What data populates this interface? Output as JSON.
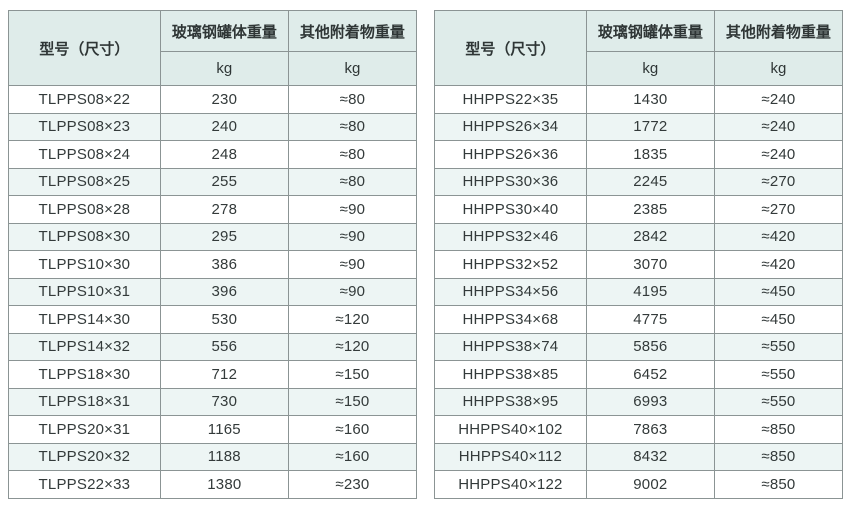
{
  "colors": {
    "header_bg": "#dfecea",
    "row_alt_bg": "#edf5f4",
    "row_bg": "#ffffff",
    "border": "#8b9494",
    "outer_border": "#5f6a6a",
    "text": "#333a3a"
  },
  "tables": [
    {
      "headers": {
        "model": "型号（尺寸）",
        "tank_weight": "玻璃钢罐体重量",
        "attachments_weight": "其他附着物重量",
        "unit": "kg"
      },
      "rows": [
        [
          "TLPPS08×22",
          "230",
          "≈80"
        ],
        [
          "TLPPS08×23",
          "240",
          "≈80"
        ],
        [
          "TLPPS08×24",
          "248",
          "≈80"
        ],
        [
          "TLPPS08×25",
          "255",
          "≈80"
        ],
        [
          "TLPPS08×28",
          "278",
          "≈90"
        ],
        [
          "TLPPS08×30",
          "295",
          "≈90"
        ],
        [
          "TLPPS10×30",
          "386",
          "≈90"
        ],
        [
          "TLPPS10×31",
          "396",
          "≈90"
        ],
        [
          "TLPPS14×30",
          "530",
          "≈120"
        ],
        [
          "TLPPS14×32",
          "556",
          "≈120"
        ],
        [
          "TLPPS18×30",
          "712",
          "≈150"
        ],
        [
          "TLPPS18×31",
          "730",
          "≈150"
        ],
        [
          "TLPPS20×31",
          "1165",
          "≈160"
        ],
        [
          "TLPPS20×32",
          "1188",
          "≈160"
        ],
        [
          "TLPPS22×33",
          "1380",
          "≈230"
        ]
      ]
    },
    {
      "headers": {
        "model": "型号（尺寸）",
        "tank_weight": "玻璃钢罐体重量",
        "attachments_weight": "其他附着物重量",
        "unit": "kg"
      },
      "rows": [
        [
          "HHPPS22×35",
          "1430",
          "≈240"
        ],
        [
          "HHPPS26×34",
          "1772",
          "≈240"
        ],
        [
          "HHPPS26×36",
          "1835",
          "≈240"
        ],
        [
          "HHPPS30×36",
          "2245",
          "≈270"
        ],
        [
          "HHPPS30×40",
          "2385",
          "≈270"
        ],
        [
          "HHPPS32×46",
          "2842",
          "≈420"
        ],
        [
          "HHPPS32×52",
          "3070",
          "≈420"
        ],
        [
          "HHPPS34×56",
          "4195",
          "≈450"
        ],
        [
          "HHPPS34×68",
          "4775",
          "≈450"
        ],
        [
          "HHPPS38×74",
          "5856",
          "≈550"
        ],
        [
          "HHPPS38×85",
          "6452",
          "≈550"
        ],
        [
          "HHPPS38×95",
          "6993",
          "≈550"
        ],
        [
          "HHPPS40×102",
          "7863",
          "≈850"
        ],
        [
          "HHPPS40×112",
          "8432",
          "≈850"
        ],
        [
          "HHPPS40×122",
          "9002",
          "≈850"
        ]
      ]
    }
  ]
}
